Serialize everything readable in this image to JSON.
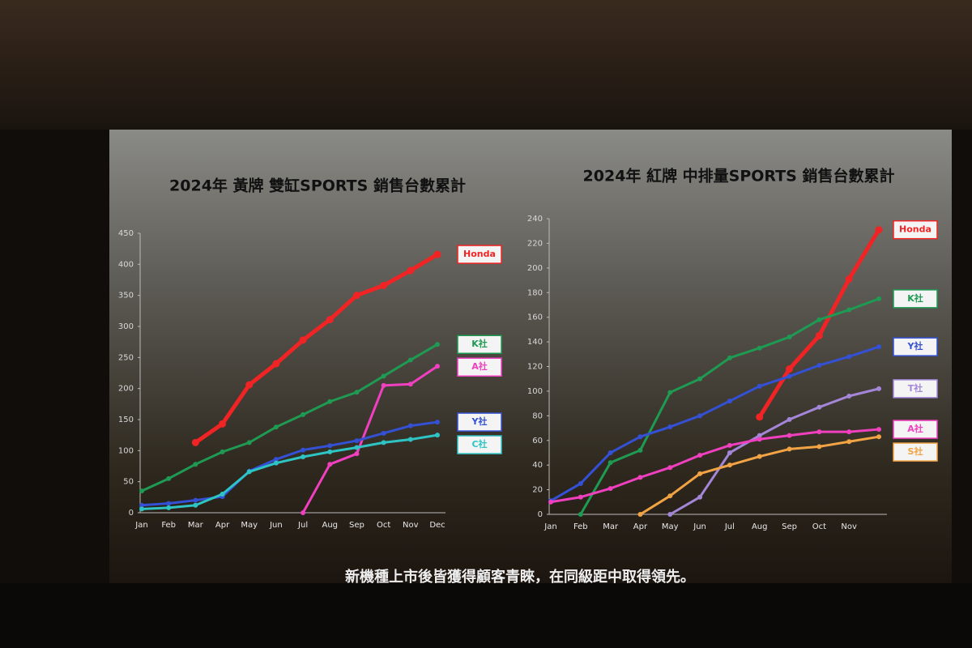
{
  "chart_data": [
    {
      "type": "line",
      "title": "2024年 黃牌 雙缸SPORTS 銷售台數累計",
      "categories": [
        "Jan",
        "Feb",
        "Mar",
        "Apr",
        "May",
        "Jun",
        "Jul",
        "Aug",
        "Sep",
        "Oct",
        "Nov",
        "Dec"
      ],
      "ylim": [
        0,
        450
      ],
      "yticks": [
        0,
        50,
        100,
        150,
        200,
        250,
        300,
        350,
        400,
        450
      ],
      "series": [
        {
          "name": "Honda",
          "color": "#f02424",
          "values": [
            null,
            null,
            113,
            143,
            206,
            240,
            278,
            311,
            350,
            366,
            390,
            416
          ]
        },
        {
          "name": "K社",
          "color": "#1e9a52",
          "values": [
            35,
            55,
            78,
            98,
            113,
            138,
            158,
            179,
            194,
            220,
            246,
            271
          ]
        },
        {
          "name": "A社",
          "color": "#f040c0",
          "values": [
            null,
            null,
            null,
            null,
            null,
            null,
            0,
            78,
            95,
            205,
            207,
            236
          ]
        },
        {
          "name": "Y社",
          "color": "#3450d4",
          "values": [
            12,
            15,
            20,
            26,
            67,
            86,
            101,
            108,
            116,
            128,
            140,
            146
          ]
        },
        {
          "name": "C社",
          "color": "#2ec4c4",
          "values": [
            6,
            8,
            12,
            30,
            66,
            80,
            90,
            98,
            105,
            113,
            118,
            125
          ]
        }
      ]
    },
    {
      "type": "line",
      "title": "2024年 紅牌 中排量SPORTS 銷售台數累計",
      "categories": [
        "Jan",
        "Feb",
        "Mar",
        "Apr",
        "May",
        "Jun",
        "Jul",
        "Aug",
        "Sep",
        "Oct",
        "Nov",
        null
      ],
      "ylim": [
        0,
        240
      ],
      "yticks": [
        0,
        20,
        40,
        60,
        80,
        100,
        120,
        140,
        160,
        180,
        200,
        220,
        240
      ],
      "series": [
        {
          "name": "Honda",
          "color": "#f02424",
          "values": [
            null,
            null,
            null,
            null,
            null,
            null,
            null,
            79,
            118,
            145,
            191,
            231
          ]
        },
        {
          "name": "K社",
          "color": "#1e9a52",
          "values": [
            null,
            0,
            42,
            52,
            99,
            110,
            127,
            135,
            144,
            158,
            166,
            175
          ]
        },
        {
          "name": "Y社",
          "color": "#3450d4",
          "values": [
            11,
            25,
            50,
            63,
            71,
            80,
            92,
            104,
            112,
            121,
            128,
            136
          ]
        },
        {
          "name": "T社",
          "color": "#a486d8",
          "values": [
            null,
            null,
            null,
            null,
            0,
            14,
            50,
            64,
            77,
            87,
            96,
            102
          ]
        },
        {
          "name": "A社",
          "color": "#f040c0",
          "values": [
            10,
            14,
            21,
            30,
            38,
            48,
            56,
            61,
            64,
            67,
            67,
            69
          ]
        },
        {
          "name": "S社",
          "color": "#f2a444",
          "values": [
            null,
            null,
            null,
            0,
            15,
            33,
            40,
            47,
            53,
            55,
            59,
            63
          ]
        }
      ]
    }
  ],
  "caption": "新機種上市後皆獲得顧客青睞，在同級距中取得領先。"
}
